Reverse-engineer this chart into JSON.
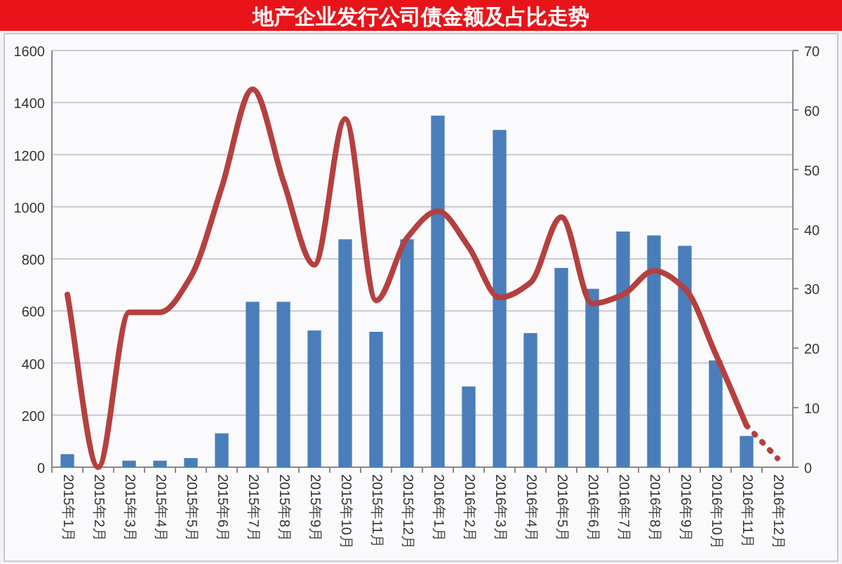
{
  "chart_data": {
    "type": "bar",
    "title": "地产企业发行公司债金额及占比走势",
    "categories": [
      "2015年1月",
      "2015年2月",
      "2015年3月",
      "2015年4月",
      "2015年5月",
      "2015年6月",
      "2015年7月",
      "2015年8月",
      "2015年9月",
      "2015年10月",
      "2015年11月",
      "2015年12月",
      "2016年1月",
      "2016年2月",
      "2016年3月",
      "2016年4月",
      "2016年5月",
      "2016年6月",
      "2016年7月",
      "2016年8月",
      "2016年9月",
      "2016年10月",
      "2016年11月",
      "2016年12月"
    ],
    "series": [
      {
        "color": "#4a7ebb",
        "values": [
          50,
          0,
          25,
          25,
          35,
          130,
          635,
          635,
          525,
          875,
          520,
          875,
          1350,
          310,
          1295,
          515,
          765,
          685,
          905,
          890,
          850,
          410,
          120,
          null
        ]
      },
      {
        "type": "line",
        "axis": "y2",
        "color": "#b5403f",
        "line_style": "solid",
        "values": [
          29,
          0,
          26,
          26,
          32,
          47,
          63.5,
          48,
          34,
          58.5,
          28,
          38.5,
          43,
          37,
          28.5,
          31,
          42,
          27.5,
          29,
          33,
          30,
          19,
          7,
          null
        ]
      },
      {
        "type": "line",
        "axis": "y2",
        "color": "#b5403f",
        "line_style": "dotted",
        "values": [
          null,
          null,
          null,
          null,
          null,
          null,
          null,
          null,
          null,
          null,
          null,
          null,
          null,
          null,
          null,
          null,
          null,
          null,
          null,
          null,
          null,
          null,
          7,
          1.5
        ]
      }
    ],
    "ylim": [
      0,
      1600
    ],
    "yticks": [
      0,
      200,
      400,
      600,
      800,
      1000,
      1200,
      1400,
      1600
    ],
    "y2lim": [
      0,
      70
    ],
    "y2ticks": [
      0,
      10,
      20,
      30,
      40,
      50,
      60,
      70
    ],
    "grid": "y"
  }
}
